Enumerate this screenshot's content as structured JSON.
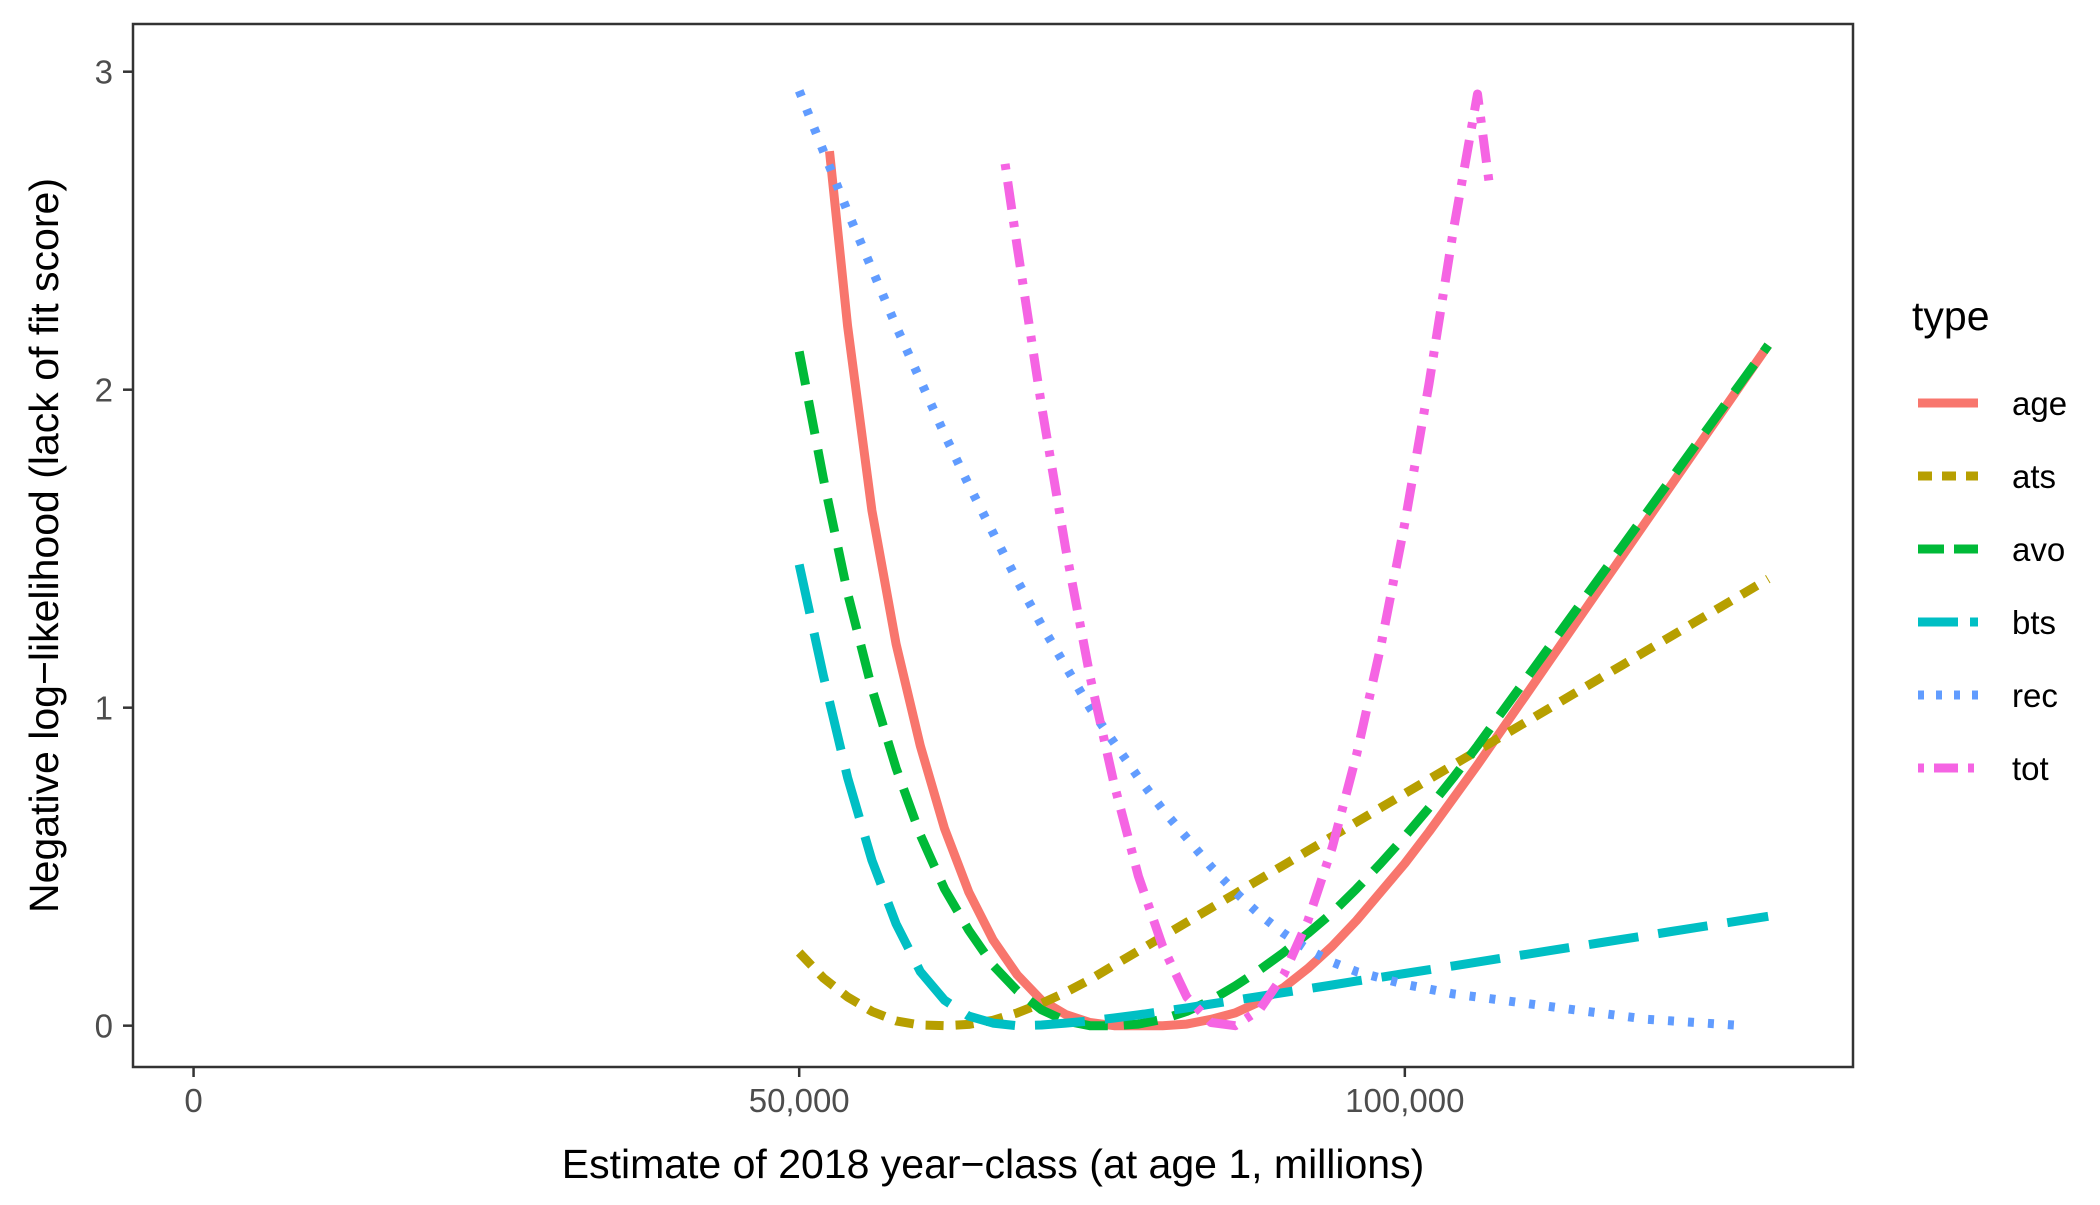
{
  "chart_data": {
    "type": "line",
    "title": "",
    "xlabel": "Estimate of 2018 year−class (at age 1, millions)",
    "ylabel": "Negative log−likelihood (lack of fit score)",
    "xlim": [
      -5000,
      137000
    ],
    "ylim": [
      -0.13,
      3.15
    ],
    "x_ticks": [
      {
        "value": 0,
        "label": "0"
      },
      {
        "value": 50000,
        "label": "50,000"
      },
      {
        "value": 100000,
        "label": "100,000"
      }
    ],
    "y_ticks": [
      {
        "value": 0,
        "label": "0"
      },
      {
        "value": 1,
        "label": "1"
      },
      {
        "value": 2,
        "label": "2"
      },
      {
        "value": 3,
        "label": "3"
      }
    ],
    "grid": false,
    "legend": {
      "title": "type",
      "placement": "right"
    },
    "series": [
      {
        "name": "age",
        "color": "#F8766D",
        "dash": "solid",
        "x": [
          52500,
          54000,
          56000,
          58000,
          60000,
          62000,
          64000,
          66000,
          68000,
          70000,
          72000,
          74000,
          76000,
          78000,
          80000,
          82000,
          84000,
          86000,
          88000,
          90000,
          92000,
          94000,
          96000,
          98000,
          100000,
          102000,
          104000,
          106000,
          108000,
          110000,
          112000,
          114000,
          116000,
          118000,
          120000,
          122000,
          124000,
          126000,
          128000,
          130000
        ],
        "y": [
          2.75,
          2.2,
          1.62,
          1.2,
          0.88,
          0.62,
          0.42,
          0.27,
          0.16,
          0.08,
          0.035,
          0.01,
          0.0,
          0.0,
          0.0,
          0.005,
          0.02,
          0.04,
          0.075,
          0.12,
          0.18,
          0.25,
          0.33,
          0.42,
          0.51,
          0.61,
          0.715,
          0.82,
          0.93,
          1.04,
          1.15,
          1.26,
          1.37,
          1.48,
          1.59,
          1.7,
          1.81,
          1.92,
          2.03,
          2.14
        ]
      },
      {
        "name": "ats",
        "color": "#B79F00",
        "dash": "short",
        "x": [
          50000,
          52000,
          54000,
          56000,
          58000,
          60000,
          62000,
          64000,
          66000,
          68000,
          70000,
          72000,
          74000,
          76000,
          78000,
          80000,
          82000,
          84000,
          86000,
          88000,
          90000,
          92000,
          94000,
          96000,
          98000,
          100000,
          102000,
          104000,
          106000,
          108000,
          110000,
          112000,
          114000,
          116000,
          118000,
          120000,
          122000,
          124000,
          126000,
          128000,
          130000
        ],
        "y": [
          0.23,
          0.15,
          0.09,
          0.045,
          0.015,
          0.002,
          0.0,
          0.004,
          0.017,
          0.04,
          0.07,
          0.105,
          0.145,
          0.19,
          0.235,
          0.28,
          0.325,
          0.37,
          0.415,
          0.46,
          0.505,
          0.55,
          0.595,
          0.64,
          0.685,
          0.73,
          0.775,
          0.82,
          0.865,
          0.91,
          0.955,
          1.0,
          1.045,
          1.09,
          1.135,
          1.18,
          1.225,
          1.27,
          1.315,
          1.36,
          1.405
        ]
      },
      {
        "name": "avo",
        "color": "#00BA38",
        "dash": "medium",
        "x": [
          50000,
          52000,
          54000,
          56000,
          58000,
          60000,
          62000,
          64000,
          66000,
          68000,
          70000,
          72000,
          74000,
          76000,
          78000,
          80000,
          82000,
          84000,
          86000,
          88000,
          90000,
          92000,
          94000,
          96000,
          98000,
          100000,
          102000,
          104000,
          106000,
          108000,
          110000,
          112000,
          114000,
          116000,
          118000,
          120000,
          122000,
          124000,
          126000,
          128000,
          130000
        ],
        "y": [
          2.12,
          1.72,
          1.36,
          1.06,
          0.81,
          0.6,
          0.43,
          0.3,
          0.19,
          0.11,
          0.05,
          0.015,
          0.0,
          0.0,
          0.005,
          0.02,
          0.045,
          0.08,
          0.125,
          0.175,
          0.23,
          0.29,
          0.355,
          0.43,
          0.51,
          0.595,
          0.685,
          0.78,
          0.88,
          0.985,
          1.09,
          1.195,
          1.3,
          1.405,
          1.51,
          1.615,
          1.72,
          1.825,
          1.93,
          2.035,
          2.14
        ]
      },
      {
        "name": "bts",
        "color": "#00BFC4",
        "dash": "long",
        "x": [
          50000,
          52000,
          54000,
          56000,
          58000,
          60000,
          62000,
          64000,
          66000,
          68000,
          70000,
          72000,
          74000,
          76000,
          78000,
          80000,
          82000,
          84000,
          86000,
          88000,
          90000,
          92000,
          94000,
          96000,
          98000,
          100000,
          102000,
          104000,
          106000,
          108000,
          110000,
          112000,
          114000,
          116000,
          118000,
          120000,
          122000,
          124000,
          126000,
          128000,
          130000
        ],
        "y": [
          1.45,
          1.1,
          0.78,
          0.52,
          0.32,
          0.17,
          0.08,
          0.03,
          0.008,
          0.0,
          0.002,
          0.008,
          0.015,
          0.024,
          0.034,
          0.045,
          0.056,
          0.068,
          0.08,
          0.092,
          0.104,
          0.116,
          0.128,
          0.14,
          0.152,
          0.164,
          0.176,
          0.188,
          0.2,
          0.212,
          0.224,
          0.236,
          0.248,
          0.26,
          0.272,
          0.284,
          0.296,
          0.308,
          0.32,
          0.332,
          0.344
        ]
      },
      {
        "name": "rec",
        "color": "#619CFF",
        "dash": "dotted",
        "x": [
          50000,
          52000,
          54000,
          56000,
          58000,
          60000,
          62000,
          64000,
          66000,
          68000,
          70000,
          72000,
          74000,
          76000,
          78000,
          80000,
          82000,
          84000,
          86000,
          88000,
          90000,
          92000,
          94000,
          96000,
          98000,
          100000,
          102000,
          104000,
          106000,
          108000,
          110000,
          112000,
          114000,
          116000,
          118000,
          120000,
          122000,
          124000,
          126000,
          128000
        ],
        "y": [
          2.94,
          2.75,
          2.56,
          2.38,
          2.2,
          2.03,
          1.86,
          1.7,
          1.55,
          1.4,
          1.26,
          1.13,
          1.0,
          0.89,
          0.78,
          0.68,
          0.59,
          0.5,
          0.42,
          0.35,
          0.29,
          0.24,
          0.2,
          0.17,
          0.15,
          0.13,
          0.115,
          0.1,
          0.09,
          0.08,
          0.07,
          0.06,
          0.05,
          0.04,
          0.03,
          0.02,
          0.015,
          0.01,
          0.005,
          0.0
        ]
      },
      {
        "name": "tot",
        "color": "#F564E3",
        "dash": "dotdash",
        "x": [
          67000,
          68000,
          70000,
          72000,
          74000,
          76000,
          78000,
          80000,
          82000,
          84000,
          86000,
          88000,
          90000,
          92000,
          94000,
          96000,
          98000,
          100000,
          102000,
          104000,
          106000,
          107000
        ],
        "y": [
          2.71,
          2.45,
          1.95,
          1.5,
          1.1,
          0.76,
          0.47,
          0.25,
          0.09,
          0.01,
          0.0,
          0.05,
          0.16,
          0.33,
          0.56,
          0.85,
          1.19,
          1.58,
          2.02,
          2.5,
          2.93,
          2.64
        ]
      }
    ]
  }
}
